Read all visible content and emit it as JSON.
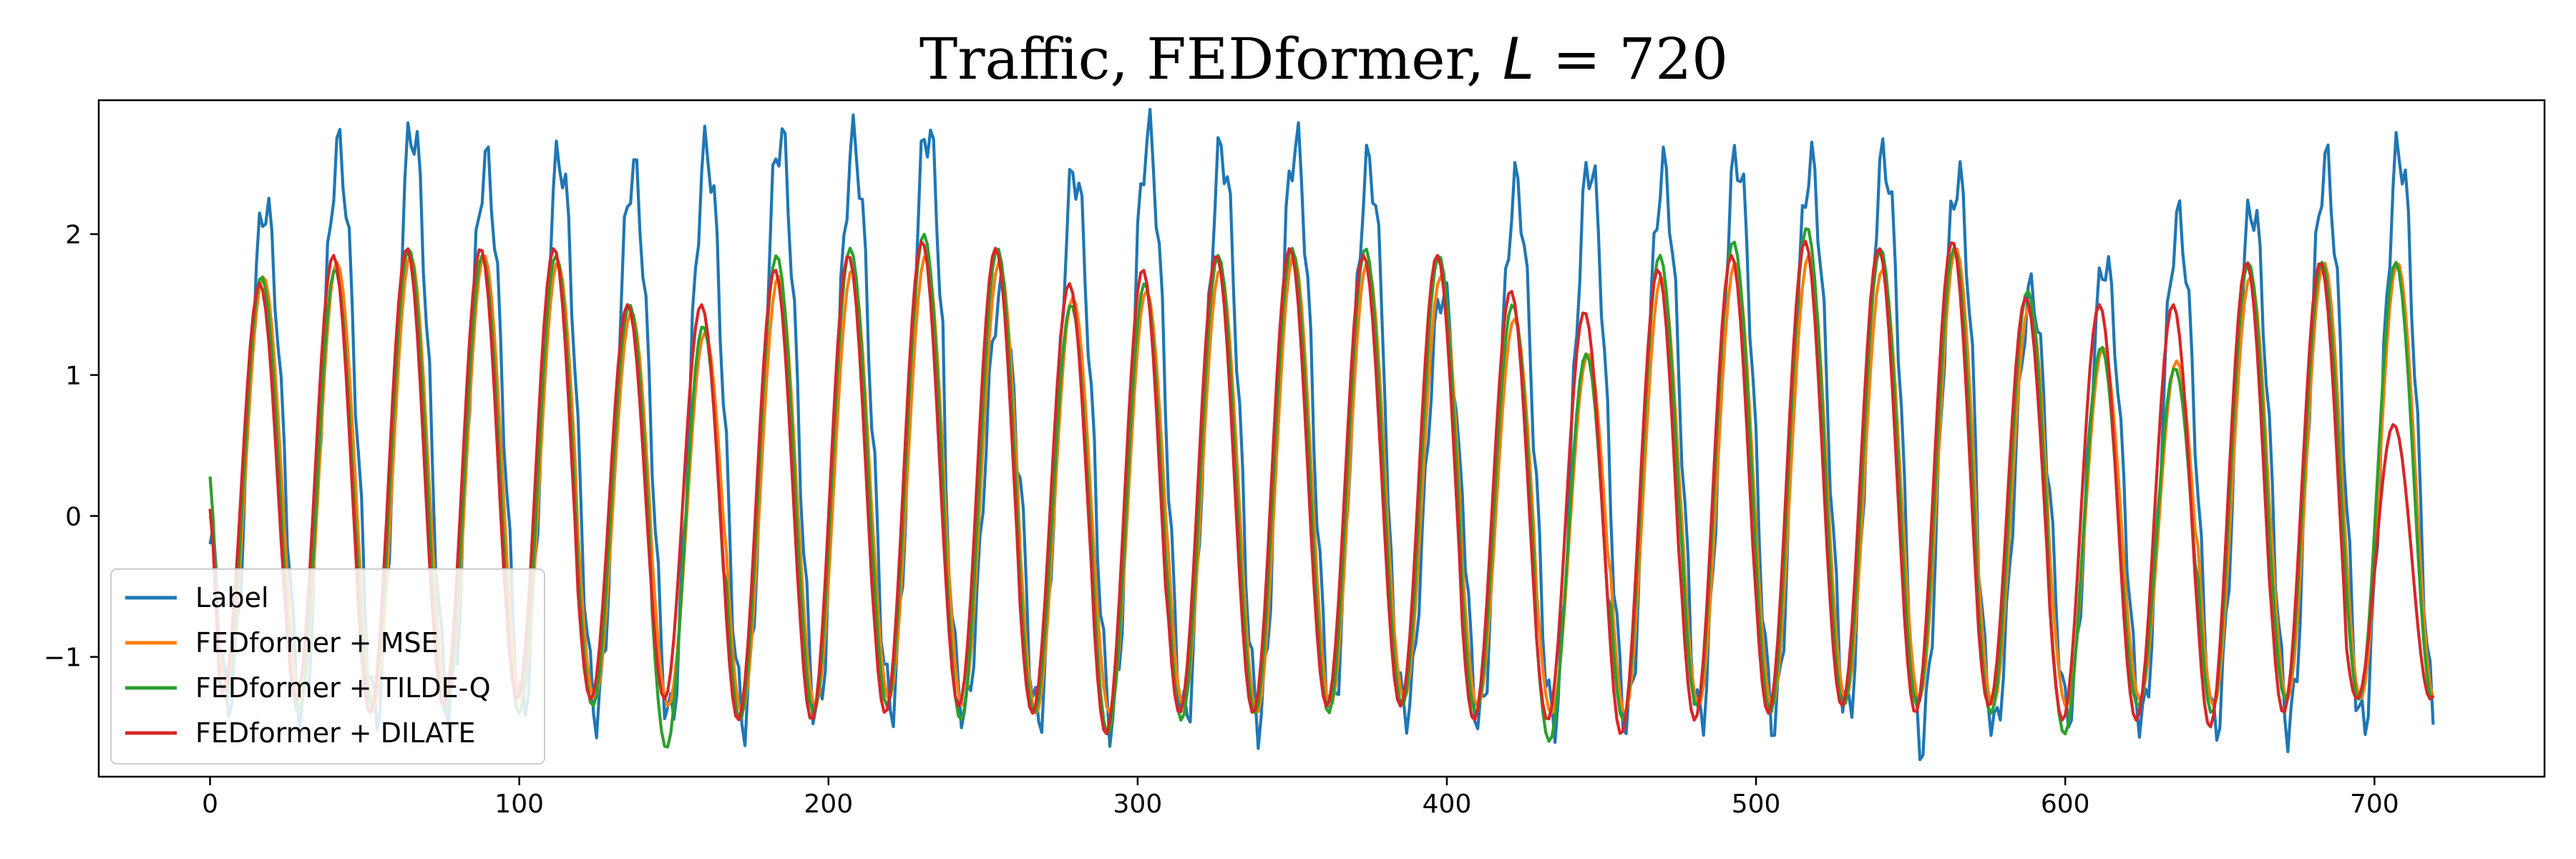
{
  "chart_data": {
    "type": "line",
    "title": "Traffic, FEDformer, L = 720",
    "title_parts": {
      "prefix": "Traffic, FEDformer, ",
      "math": "L",
      "suffix": " = 720"
    },
    "xlabel": "",
    "ylabel": "",
    "xlim": [
      -36,
      755
    ],
    "ylim": [
      -1.85,
      2.95
    ],
    "xticks": [
      0,
      100,
      200,
      300,
      400,
      500,
      600,
      700
    ],
    "yticks": [
      -1,
      0,
      1,
      2
    ],
    "ytick_labels": [
      "−1",
      "0",
      "1",
      "2"
    ],
    "grid": false,
    "legend_position": "lower-left",
    "n_points": 720,
    "period": 23.8,
    "series": [
      {
        "name": "Label",
        "color": "#1f77b4",
        "start": -0.2,
        "peaks": [
          2.2,
          2.6,
          2.75,
          2.5,
          2.55,
          2.45,
          2.6,
          2.7,
          2.65,
          2.75,
          1.6,
          2.45,
          2.7,
          2.6,
          2.65,
          2.5,
          1.6,
          2.35,
          2.5,
          2.45,
          2.55,
          2.5,
          2.55,
          2.4,
          1.6,
          1.8,
          2.1,
          2.2,
          2.5,
          2.6
        ],
        "troughs": [
          -1.3,
          -1.4,
          -1.4,
          -1.35,
          -1.35,
          -1.4,
          -1.45,
          -1.45,
          -1.4,
          -1.35,
          -1.4,
          -1.45,
          -1.45,
          -1.45,
          -1.45,
          -1.35,
          -1.4,
          -1.45,
          -1.45,
          -1.45,
          -1.45,
          -1.45,
          -1.4,
          -1.6,
          -1.5,
          -1.4,
          -1.45,
          -1.5,
          -1.5,
          -1.5
        ]
      },
      {
        "name": "FEDformer + MSE",
        "color": "#ff7f0e",
        "start": 0.0,
        "peaks": [
          1.7,
          1.8,
          1.85,
          1.85,
          1.8,
          1.45,
          1.3,
          1.7,
          1.75,
          1.85,
          1.8,
          1.55,
          1.6,
          1.75,
          1.85,
          1.8,
          1.7,
          1.4,
          1.15,
          1.7,
          1.8,
          1.85,
          1.75,
          1.9,
          1.5,
          1.2,
          1.1,
          1.7,
          1.8,
          1.8
        ],
        "troughs": [
          -1.2,
          -1.3,
          -1.35,
          -1.3,
          -1.3,
          -1.3,
          -1.35,
          -1.4,
          -1.35,
          -1.3,
          -1.35,
          -1.4,
          -1.4,
          -1.35,
          -1.4,
          -1.35,
          -1.3,
          -1.35,
          -1.4,
          -1.4,
          -1.35,
          -1.35,
          -1.3,
          -1.3,
          -1.35,
          -1.35,
          -1.3,
          -1.35,
          -1.3,
          -1.3
        ]
      },
      {
        "name": "FEDformer + TILDE-Q",
        "color": "#2ca02c",
        "start": 0.28,
        "peaks": [
          1.7,
          1.75,
          1.9,
          1.85,
          1.85,
          1.5,
          1.35,
          1.85,
          1.9,
          2.0,
          1.9,
          1.5,
          1.65,
          1.85,
          1.9,
          1.9,
          1.85,
          1.5,
          1.15,
          1.85,
          1.95,
          2.05,
          1.9,
          1.9,
          1.6,
          1.2,
          1.05,
          1.8,
          1.8,
          1.8
        ],
        "troughs": [
          -1.3,
          -1.4,
          -1.35,
          -1.4,
          -1.4,
          -1.35,
          -1.65,
          -1.45,
          -1.4,
          -1.35,
          -1.45,
          -1.4,
          -1.55,
          -1.45,
          -1.4,
          -1.4,
          -1.35,
          -1.4,
          -1.6,
          -1.45,
          -1.35,
          -1.4,
          -1.35,
          -1.35,
          -1.4,
          -1.55,
          -1.35,
          -1.4,
          -1.3,
          -1.3
        ]
      },
      {
        "name": "FEDformer + DILATE",
        "color": "#d62728",
        "start": 0.05,
        "peaks": [
          1.65,
          1.85,
          1.9,
          1.9,
          1.9,
          1.5,
          1.5,
          1.75,
          1.85,
          1.95,
          1.9,
          1.65,
          1.75,
          1.85,
          1.9,
          1.85,
          1.85,
          1.6,
          1.45,
          1.75,
          1.85,
          1.95,
          1.9,
          1.95,
          1.55,
          1.5,
          1.5,
          1.8,
          1.8,
          0.65
        ],
        "troughs": [
          -1.25,
          -1.3,
          -1.4,
          -1.35,
          -1.3,
          -1.3,
          -1.3,
          -1.45,
          -1.45,
          -1.4,
          -1.35,
          -1.4,
          -1.55,
          -1.4,
          -1.4,
          -1.35,
          -1.35,
          -1.45,
          -1.45,
          -1.55,
          -1.45,
          -1.4,
          -1.35,
          -1.4,
          -1.35,
          -1.45,
          -1.45,
          -1.5,
          -1.4,
          -1.3
        ]
      }
    ]
  }
}
